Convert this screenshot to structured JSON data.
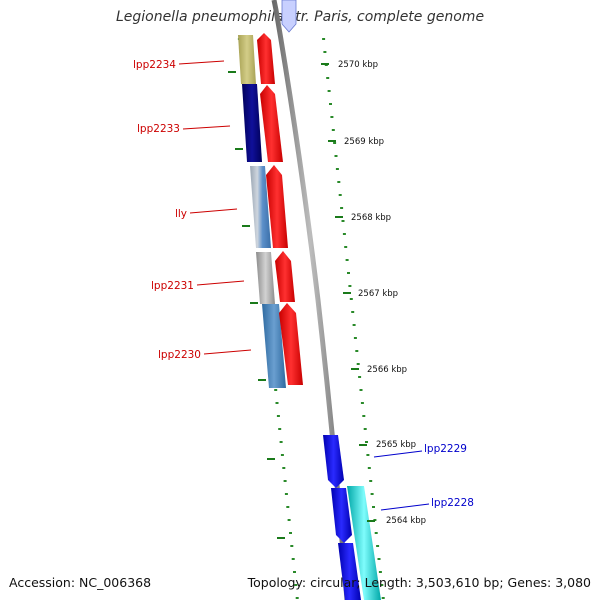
{
  "title": "Legionella pneumophila str. Paris, complete genome",
  "footer": {
    "accession": "Accession: NC_006368",
    "topology": "Topology: circular; Length: 3,503,610 bp; Genes: 3,080"
  },
  "colors": {
    "forward_label": "#cc0000",
    "reverse_label": "#0000cc",
    "tick": "#1a7a1a",
    "dots": "#2a8a2a",
    "backbone": "#888888"
  },
  "scale_labels": [
    {
      "text": "2570 kbp"
    },
    {
      "text": "2569 kbp"
    },
    {
      "text": "2568 kbp"
    },
    {
      "text": "2567 kbp"
    },
    {
      "text": "2566 kbp"
    },
    {
      "text": "2565 kbp"
    },
    {
      "text": "2564 kbp"
    }
  ],
  "genes": [
    {
      "label": "lpp2234",
      "strand": "forward",
      "cog_color": "#bdb76b"
    },
    {
      "label": "lpp2233",
      "strand": "forward",
      "cog_color": "#000080"
    },
    {
      "label": "lly",
      "strand": "forward",
      "cog_color": "#5b8fc9"
    },
    {
      "label": "lpp2231",
      "strand": "forward",
      "cog_color": "#b0b0b0"
    },
    {
      "label": "lpp2230",
      "strand": "forward",
      "cog_color": "#4a86c0"
    },
    {
      "label": "lpp2229",
      "strand": "reverse",
      "cog_color": "#1010e0"
    },
    {
      "label": "lpp2228",
      "strand": "reverse",
      "cog_color": "#00e0e0"
    }
  ]
}
